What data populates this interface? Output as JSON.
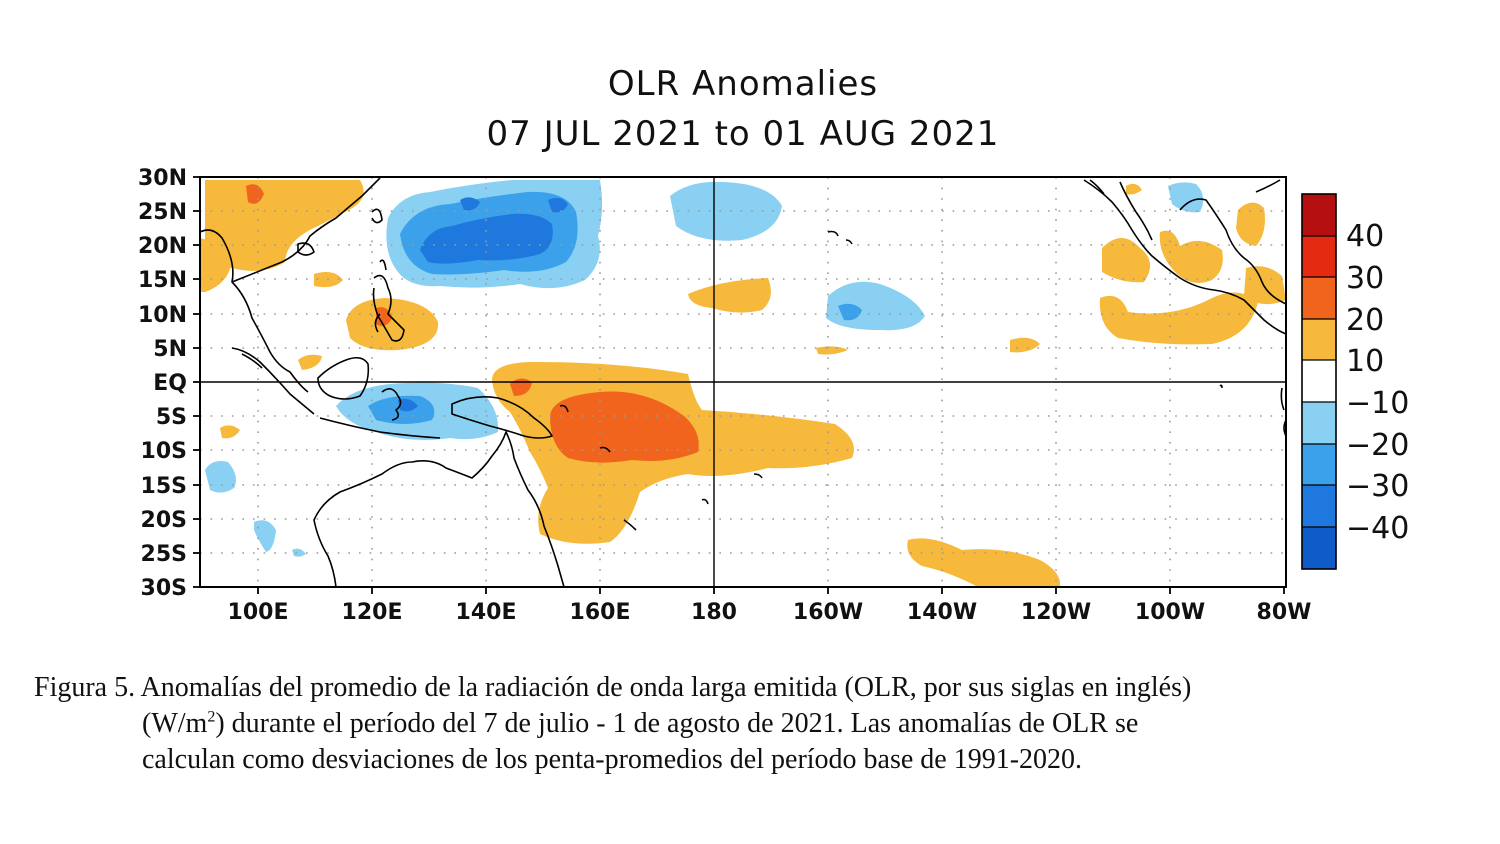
{
  "title": {
    "line1": "OLR Anomalies",
    "line2": "07 JUL 2021 to 01 AUG 2021"
  },
  "map": {
    "type": "filled-contour-map",
    "lon_range": [
      "90E",
      "80W"
    ],
    "lat_range": [
      "30S",
      "30N"
    ],
    "lat_labels": [
      "30N",
      "25N",
      "20N",
      "15N",
      "10N",
      "5N",
      "EQ",
      "5S",
      "10S",
      "15S",
      "20S",
      "25S",
      "30S"
    ],
    "lon_labels": [
      "100E",
      "120E",
      "140E",
      "160E",
      "180",
      "160W",
      "140W",
      "120W",
      "100W",
      "80W"
    ],
    "grid": "dotted",
    "reference_lines": [
      "EQ",
      "180"
    ],
    "colors": {
      "pos_10_20": "#f6b93b",
      "pos_20_30": "#f0641e",
      "pos_30_40": "#e52a12",
      "pos_40_plus": "#b50f0f",
      "neg_10_20": "#8ad0f2",
      "neg_20_30": "#3aa1ea",
      "neg_30_40": "#1f78dd",
      "neg_40_plus": "#0f5cc8",
      "coastline": "#000000"
    }
  },
  "colorbar": {
    "labels": [
      "40",
      "30",
      "20",
      "10",
      "−10",
      "−20",
      "−30",
      "−40"
    ],
    "colors": [
      "#b50f0f",
      "#e52a12",
      "#f0641e",
      "#f6b93b",
      "#ffffff",
      "#8ad0f2",
      "#3aa1ea",
      "#1f78dd",
      "#0f5cc8"
    ]
  },
  "caption": {
    "line1": "Figura 5. Anomalías del promedio de la radiación de onda larga emitida (OLR, por sus siglas en inglés)",
    "line2a": "(W/m",
    "line2sup": "2",
    "line2b": ") durante el período del 7 de julio - 1 de agosto de 2021.  Las anomalías de OLR se",
    "line3": "calculan como desviaciones de los penta-promedios del período base de 1991-2020."
  }
}
